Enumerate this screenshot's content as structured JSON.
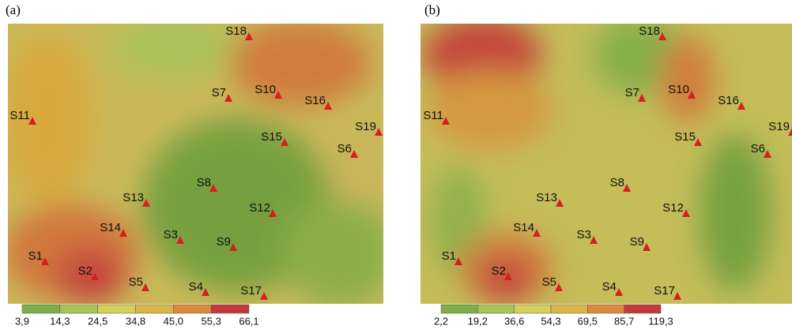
{
  "panels": [
    {
      "label": "(a)",
      "stations": [
        "S1",
        "S2",
        "S3",
        "S4",
        "S5",
        "S6",
        "S7",
        "S8",
        "S9",
        "S10",
        "S11",
        "S12",
        "S13",
        "S14",
        "S15",
        "S16",
        "S17",
        "S18",
        "S19"
      ],
      "colorbar": [
        "3,9",
        "14,3",
        "24,5",
        "34,8",
        "45,0",
        "55,3",
        "66,1"
      ]
    },
    {
      "label": "(b)",
      "stations": [
        "S1",
        "S2",
        "S3",
        "S4",
        "S5",
        "S6",
        "S7",
        "S8",
        "S9",
        "S10",
        "S11",
        "S12",
        "S13",
        "S14",
        "S15",
        "S16",
        "S17",
        "S18",
        "S19"
      ],
      "colorbar": [
        "2,2",
        "19,2",
        "36,6",
        "54,3",
        "69,5",
        "85,7",
        "119,3"
      ]
    }
  ]
}
